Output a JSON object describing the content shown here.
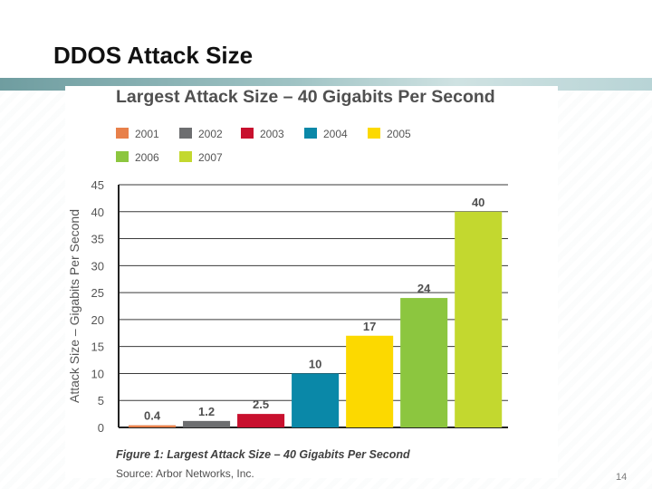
{
  "slide": {
    "title": "DDOS Attack Size",
    "page_number": "14"
  },
  "figure": {
    "caption": "Figure 1: Largest Attack Size – 40 Gigabits Per Second",
    "source": "Source: Arbor Networks, Inc."
  },
  "chart_data": {
    "type": "bar",
    "title": "Largest Attack Size – 40 Gigabits Per Second",
    "xlabel": "",
    "ylabel": "Attack Size – Gigabits Per Second",
    "categories": [
      "2001",
      "2002",
      "2003",
      "2004",
      "2005",
      "2006",
      "2007"
    ],
    "values": [
      0.4,
      1.2,
      2.5,
      10,
      17,
      24,
      40
    ],
    "data_labels": [
      "0.4",
      "1.2",
      "2.5",
      "10",
      "17",
      "24",
      "40"
    ],
    "colors": [
      "#e8804a",
      "#6d6e70",
      "#c8102e",
      "#0a88a8",
      "#fcd900",
      "#8cc63f",
      "#c3d82f"
    ],
    "ylim": [
      0,
      45
    ],
    "yticks": [
      0,
      5,
      10,
      15,
      20,
      25,
      30,
      35,
      40,
      45
    ],
    "ytick_labels": [
      "0",
      "5",
      "10",
      "15",
      "20",
      "25",
      "30",
      "35",
      "40",
      "45"
    ],
    "grid": true,
    "legend_position": "top-left"
  }
}
